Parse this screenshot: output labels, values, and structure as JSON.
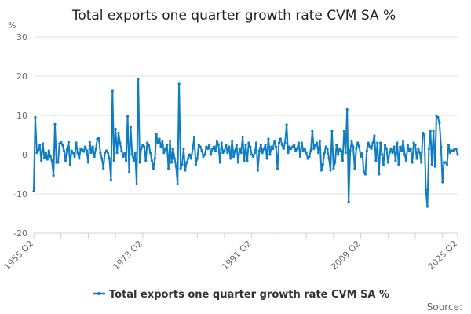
{
  "chart_data": {
    "type": "line",
    "title": "Total exports one quarter growth rate CVM SA %",
    "ylabel": "%",
    "xlabel": "",
    "ylim": [
      -20,
      30
    ],
    "yticks": [
      -20,
      -10,
      0,
      10,
      20,
      30
    ],
    "grid": true,
    "x_start": "1955 Q2",
    "x_end": "2025 Q2",
    "xtick_labels": [
      "1955 Q2",
      "1973 Q2",
      "1991 Q2",
      "2009 Q2",
      "2025 Q2"
    ],
    "legend_position": "bottom",
    "series": [
      {
        "name": "Total exports one quarter growth rate CVM SA %",
        "color": "#0f7dc2",
        "values": [
          -9.3,
          9.5,
          0.5,
          1.2,
          2.5,
          -1.5,
          2.8,
          -0.8,
          0.5,
          -1.2,
          1,
          -0.5,
          -1.5,
          -5.3,
          7.7,
          -2,
          -2,
          2.8,
          3.2,
          2.5,
          1,
          -1.5,
          1.5,
          3.2,
          -2.5,
          1,
          0.5,
          -0.5,
          3,
          0.5,
          -1,
          1.5,
          1.2,
          0.8,
          2,
          1,
          -2,
          3.2,
          0.5,
          2,
          -0.5,
          1.5,
          4,
          4.2,
          0.5,
          -1,
          -3.5,
          0.5,
          1,
          0.5,
          -1,
          -6.5,
          16.2,
          -1.5,
          6.5,
          0.5,
          5.5,
          3,
          1,
          -0.5,
          0.5,
          -1.5,
          9.7,
          -4.5,
          7,
          0,
          -1.5,
          0.5,
          -7.5,
          19.3,
          -2,
          1.5,
          2.5,
          2,
          -1.5,
          3,
          2.5,
          0.5,
          -1.5,
          -3.5,
          -1,
          5.2,
          3,
          4,
          2,
          3.5,
          0.5,
          1.5,
          2.5,
          -3.5,
          3.5,
          -2,
          1.5,
          -1,
          -3,
          -7.5,
          18,
          -3.5,
          -2.5,
          1.5,
          -4,
          -2,
          -1,
          0,
          -1,
          1.5,
          4.5,
          -2.5,
          -1,
          2.5,
          2,
          1,
          -0.5,
          0,
          2,
          1.5,
          2.5,
          0,
          1.5,
          2,
          1,
          3.5,
          2.5,
          -2,
          3,
          0.5,
          1,
          2.5,
          0.5,
          2,
          -1,
          3.5,
          -0.5,
          1,
          2.5,
          -2,
          1.5,
          0.5,
          4.5,
          -1.5,
          2.5,
          -1.5,
          3,
          2,
          0,
          -0.5,
          0.5,
          3,
          -4,
          1,
          2.5,
          0.5,
          1.5,
          2.5,
          -1,
          4,
          0,
          2,
          1.5,
          3.5,
          2,
          -3.5,
          3,
          4,
          2.5,
          1.5,
          3,
          7.6,
          0.5,
          2,
          1.5,
          2,
          2.5,
          1,
          1.5,
          3,
          -0.5,
          3,
          1,
          1.5,
          0.5,
          -1,
          -0.5,
          1,
          6,
          1.5,
          2.5,
          3,
          0.5,
          3.5,
          -4,
          -2.5,
          0.5,
          2,
          1.5,
          -1,
          -4,
          6,
          -3.5,
          -2,
          2.5,
          0,
          1.5,
          1,
          -1.5,
          6,
          0.5,
          11.5,
          -12,
          1,
          3.5,
          2,
          -3.5,
          1.5,
          3,
          2,
          -0.5,
          0.5,
          -4.5,
          -5,
          1,
          3,
          2,
          1.5,
          3,
          4.8,
          -1.5,
          3,
          -5,
          3,
          0,
          -2.5,
          2.5,
          1.5,
          -2,
          0.5,
          1.5,
          0.5,
          2,
          -1.5,
          3,
          -2.5,
          2,
          1,
          3.5,
          0,
          -1.5,
          2.5,
          1,
          1.5,
          -2,
          3,
          2.5,
          -1,
          1.5,
          0.5,
          -2,
          5.5,
          5,
          -9,
          -13.2,
          1.5,
          6,
          -2.5,
          6,
          -3,
          9.8,
          9.5,
          8,
          2,
          -7,
          -2,
          -2,
          -2.5,
          2.5,
          0.5,
          1,
          1,
          1.5,
          1.5,
          0
        ]
      }
    ],
    "source_label": "Source:"
  }
}
